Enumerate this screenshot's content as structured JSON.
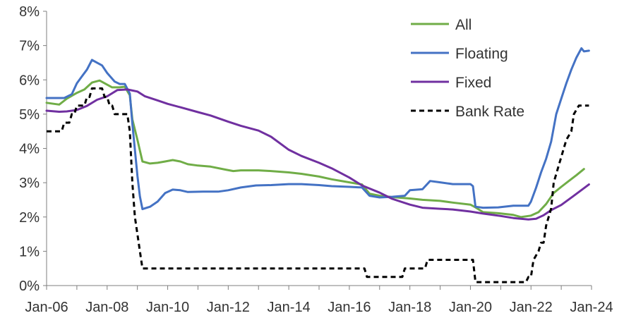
{
  "chart_data": {
    "type": "line",
    "title": "",
    "xlabel": "",
    "ylabel": "",
    "x_range": [
      "2006-01",
      "2024-01"
    ],
    "ylim": [
      0,
      8
    ],
    "y_unit": "%",
    "y_ticks": [
      "0%",
      "1%",
      "2%",
      "3%",
      "4%",
      "5%",
      "6%",
      "7%",
      "8%"
    ],
    "x_ticks": [
      {
        "date": "2006-01",
        "label": "Jan-06"
      },
      {
        "date": "2008-01",
        "label": "Jan-08"
      },
      {
        "date": "2010-01",
        "label": "Jan-10"
      },
      {
        "date": "2012-01",
        "label": "Jan-12"
      },
      {
        "date": "2014-01",
        "label": "Jan-14"
      },
      {
        "date": "2016-01",
        "label": "Jan-16"
      },
      {
        "date": "2018-01",
        "label": "Jan-18"
      },
      {
        "date": "2020-01",
        "label": "Jan-20"
      },
      {
        "date": "2022-01",
        "label": "Jan-22"
      },
      {
        "date": "2024-01",
        "label": "Jan-24"
      }
    ],
    "grid": false,
    "legend_position": "top-right",
    "series": [
      {
        "name": "All",
        "color": "#70ad47",
        "dash": "solid",
        "points": [
          [
            "2006-01",
            5.33
          ],
          [
            "2006-06",
            5.28
          ],
          [
            "2006-09",
            5.45
          ],
          [
            "2007-01",
            5.62
          ],
          [
            "2007-04",
            5.72
          ],
          [
            "2007-07",
            5.92
          ],
          [
            "2007-10",
            5.98
          ],
          [
            "2008-01",
            5.86
          ],
          [
            "2008-03",
            5.78
          ],
          [
            "2008-06",
            5.78
          ],
          [
            "2008-08",
            5.8
          ],
          [
            "2008-10",
            5.55
          ],
          [
            "2008-11",
            4.85
          ],
          [
            "2009-01",
            4.25
          ],
          [
            "2009-03",
            3.62
          ],
          [
            "2009-06",
            3.56
          ],
          [
            "2009-09",
            3.58
          ],
          [
            "2009-12",
            3.62
          ],
          [
            "2010-03",
            3.66
          ],
          [
            "2010-06",
            3.62
          ],
          [
            "2010-09",
            3.54
          ],
          [
            "2011-01",
            3.5
          ],
          [
            "2011-06",
            3.47
          ],
          [
            "2011-12",
            3.38
          ],
          [
            "2012-03",
            3.34
          ],
          [
            "2012-06",
            3.36
          ],
          [
            "2012-09",
            3.36
          ],
          [
            "2013-01",
            3.36
          ],
          [
            "2013-06",
            3.34
          ],
          [
            "2014-01",
            3.3
          ],
          [
            "2014-06",
            3.26
          ],
          [
            "2015-01",
            3.18
          ],
          [
            "2015-06",
            3.1
          ],
          [
            "2016-01",
            3.01
          ],
          [
            "2016-06",
            2.95
          ],
          [
            "2016-09",
            2.68
          ],
          [
            "2017-01",
            2.62
          ],
          [
            "2017-06",
            2.58
          ],
          [
            "2018-01",
            2.54
          ],
          [
            "2018-06",
            2.5
          ],
          [
            "2019-01",
            2.47
          ],
          [
            "2019-06",
            2.42
          ],
          [
            "2020-01",
            2.36
          ],
          [
            "2020-03",
            2.28
          ],
          [
            "2020-06",
            2.14
          ],
          [
            "2020-12",
            2.11
          ],
          [
            "2021-06",
            2.06
          ],
          [
            "2021-09",
            2.0
          ],
          [
            "2022-01",
            2.04
          ],
          [
            "2022-04",
            2.14
          ],
          [
            "2022-07",
            2.38
          ],
          [
            "2022-10",
            2.7
          ],
          [
            "2023-01",
            2.88
          ],
          [
            "2023-04",
            3.05
          ],
          [
            "2023-07",
            3.22
          ],
          [
            "2023-10",
            3.4
          ]
        ]
      },
      {
        "name": "Floating",
        "color": "#4472c4",
        "dash": "solid",
        "points": [
          [
            "2006-01",
            5.47
          ],
          [
            "2006-08",
            5.47
          ],
          [
            "2006-11",
            5.58
          ],
          [
            "2007-01",
            5.9
          ],
          [
            "2007-03",
            6.1
          ],
          [
            "2007-05",
            6.3
          ],
          [
            "2007-07",
            6.58
          ],
          [
            "2007-09",
            6.5
          ],
          [
            "2007-11",
            6.42
          ],
          [
            "2008-01",
            6.2
          ],
          [
            "2008-04",
            5.95
          ],
          [
            "2008-06",
            5.88
          ],
          [
            "2008-08",
            5.88
          ],
          [
            "2008-10",
            5.6
          ],
          [
            "2008-11",
            4.72
          ],
          [
            "2009-01",
            3.2
          ],
          [
            "2009-02",
            2.6
          ],
          [
            "2009-03",
            2.23
          ],
          [
            "2009-06",
            2.3
          ],
          [
            "2009-09",
            2.45
          ],
          [
            "2009-12",
            2.7
          ],
          [
            "2010-03",
            2.8
          ],
          [
            "2010-06",
            2.78
          ],
          [
            "2010-09",
            2.73
          ],
          [
            "2011-03",
            2.74
          ],
          [
            "2011-09",
            2.74
          ],
          [
            "2012-01",
            2.78
          ],
          [
            "2012-06",
            2.86
          ],
          [
            "2012-12",
            2.92
          ],
          [
            "2013-06",
            2.93
          ],
          [
            "2014-01",
            2.96
          ],
          [
            "2014-06",
            2.96
          ],
          [
            "2015-01",
            2.93
          ],
          [
            "2015-06",
            2.9
          ],
          [
            "2016-01",
            2.88
          ],
          [
            "2016-06",
            2.86
          ],
          [
            "2016-09",
            2.62
          ],
          [
            "2017-01",
            2.57
          ],
          [
            "2017-06",
            2.59
          ],
          [
            "2017-11",
            2.62
          ],
          [
            "2018-01",
            2.78
          ],
          [
            "2018-06",
            2.81
          ],
          [
            "2018-09",
            3.05
          ],
          [
            "2019-01",
            3.01
          ],
          [
            "2019-06",
            2.96
          ],
          [
            "2019-11",
            2.96
          ],
          [
            "2020-01",
            2.96
          ],
          [
            "2020-02",
            2.9
          ],
          [
            "2020-03",
            2.3
          ],
          [
            "2020-06",
            2.27
          ],
          [
            "2020-12",
            2.28
          ],
          [
            "2021-06",
            2.33
          ],
          [
            "2021-12",
            2.33
          ],
          [
            "2022-01",
            2.45
          ],
          [
            "2022-03",
            2.85
          ],
          [
            "2022-05",
            3.3
          ],
          [
            "2022-07",
            3.7
          ],
          [
            "2022-09",
            4.2
          ],
          [
            "2022-11",
            5.0
          ],
          [
            "2023-01",
            5.45
          ],
          [
            "2023-03",
            5.9
          ],
          [
            "2023-05",
            6.3
          ],
          [
            "2023-07",
            6.65
          ],
          [
            "2023-09",
            6.92
          ],
          [
            "2023-10",
            6.83
          ],
          [
            "2023-12",
            6.85
          ]
        ]
      },
      {
        "name": "Fixed",
        "color": "#7030a0",
        "dash": "solid",
        "points": [
          [
            "2006-01",
            5.1
          ],
          [
            "2006-06",
            5.07
          ],
          [
            "2006-09",
            5.08
          ],
          [
            "2007-01",
            5.12
          ],
          [
            "2007-05",
            5.24
          ],
          [
            "2007-09",
            5.42
          ],
          [
            "2008-01",
            5.52
          ],
          [
            "2008-05",
            5.7
          ],
          [
            "2008-09",
            5.72
          ],
          [
            "2009-01",
            5.66
          ],
          [
            "2009-04",
            5.52
          ],
          [
            "2009-09",
            5.4
          ],
          [
            "2010-01",
            5.3
          ],
          [
            "2010-06",
            5.2
          ],
          [
            "2011-01",
            5.06
          ],
          [
            "2011-06",
            4.96
          ],
          [
            "2012-01",
            4.78
          ],
          [
            "2012-06",
            4.66
          ],
          [
            "2013-01",
            4.52
          ],
          [
            "2013-06",
            4.34
          ],
          [
            "2014-01",
            3.96
          ],
          [
            "2014-06",
            3.78
          ],
          [
            "2015-01",
            3.58
          ],
          [
            "2015-06",
            3.42
          ],
          [
            "2016-01",
            3.15
          ],
          [
            "2016-06",
            2.92
          ],
          [
            "2017-01",
            2.71
          ],
          [
            "2017-06",
            2.53
          ],
          [
            "2018-01",
            2.36
          ],
          [
            "2018-06",
            2.27
          ],
          [
            "2019-01",
            2.24
          ],
          [
            "2019-06",
            2.22
          ],
          [
            "2020-01",
            2.16
          ],
          [
            "2020-06",
            2.1
          ],
          [
            "2021-01",
            2.03
          ],
          [
            "2021-06",
            1.97
          ],
          [
            "2021-12",
            1.93
          ],
          [
            "2022-03",
            1.95
          ],
          [
            "2022-06",
            2.05
          ],
          [
            "2022-09",
            2.2
          ],
          [
            "2023-01",
            2.35
          ],
          [
            "2023-06",
            2.62
          ],
          [
            "2023-12",
            2.95
          ]
        ]
      },
      {
        "name": "Bank Rate",
        "color": "#000000",
        "dash": "dashed",
        "points": [
          [
            "2006-01",
            4.5
          ],
          [
            "2006-07",
            4.5
          ],
          [
            "2006-08",
            4.75
          ],
          [
            "2006-10",
            4.75
          ],
          [
            "2006-11",
            5.0
          ],
          [
            "2006-12",
            5.0
          ],
          [
            "2007-01",
            5.25
          ],
          [
            "2007-04",
            5.25
          ],
          [
            "2007-05",
            5.5
          ],
          [
            "2007-06",
            5.5
          ],
          [
            "2007-07",
            5.75
          ],
          [
            "2007-11",
            5.75
          ],
          [
            "2007-12",
            5.5
          ],
          [
            "2008-01",
            5.5
          ],
          [
            "2008-02",
            5.25
          ],
          [
            "2008-03",
            5.25
          ],
          [
            "2008-04",
            5.0
          ],
          [
            "2008-09",
            5.0
          ],
          [
            "2008-10",
            4.5
          ],
          [
            "2008-11",
            3.0
          ],
          [
            "2008-12",
            2.0
          ],
          [
            "2009-01",
            1.5
          ],
          [
            "2009-02",
            1.0
          ],
          [
            "2009-03",
            0.5
          ],
          [
            "2016-07",
            0.5
          ],
          [
            "2016-08",
            0.25
          ],
          [
            "2017-10",
            0.25
          ],
          [
            "2017-11",
            0.5
          ],
          [
            "2018-07",
            0.5
          ],
          [
            "2018-08",
            0.75
          ],
          [
            "2020-02",
            0.75
          ],
          [
            "2020-03",
            0.1
          ],
          [
            "2021-11",
            0.1
          ],
          [
            "2021-12",
            0.25
          ],
          [
            "2022-01",
            0.25
          ],
          [
            "2022-02",
            0.75
          ],
          [
            "2022-04",
            1.0
          ],
          [
            "2022-05",
            1.25
          ],
          [
            "2022-06",
            1.25
          ],
          [
            "2022-07",
            1.75
          ],
          [
            "2022-09",
            2.25
          ],
          [
            "2022-10",
            3.0
          ],
          [
            "2022-12",
            3.5
          ],
          [
            "2023-02",
            4.0
          ],
          [
            "2023-03",
            4.25
          ],
          [
            "2023-05",
            4.5
          ],
          [
            "2023-06",
            5.0
          ],
          [
            "2023-08",
            5.25
          ],
          [
            "2023-12",
            5.25
          ]
        ]
      }
    ]
  }
}
